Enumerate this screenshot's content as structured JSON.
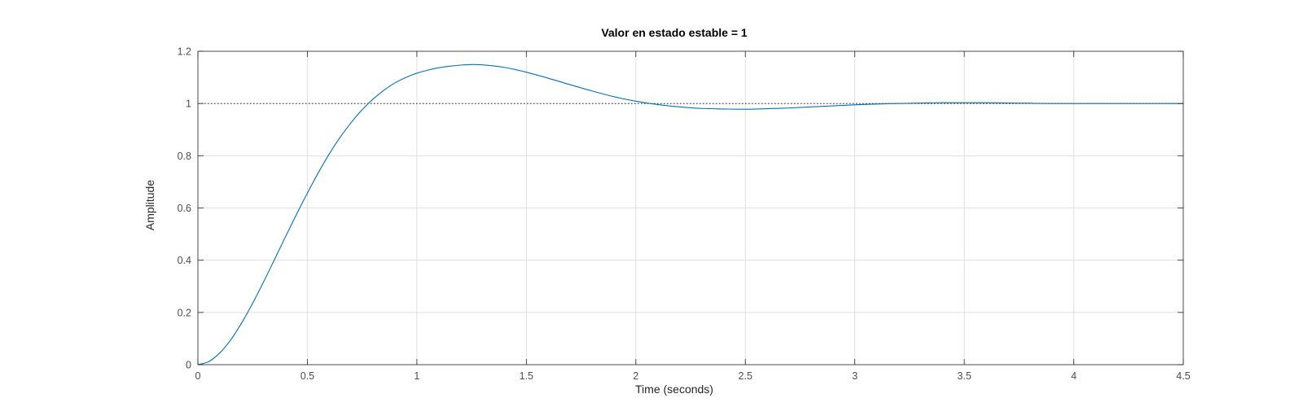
{
  "chart_data": {
    "type": "line",
    "title": "Valor en estado estable = 1",
    "xlabel": "Time (seconds)",
    "ylabel": "Amplitude",
    "xlim": [
      0,
      4.5
    ],
    "ylim": [
      0,
      1.2
    ],
    "xticks": [
      0,
      0.5,
      1,
      1.5,
      2,
      2.5,
      3,
      3.5,
      4,
      4.5
    ],
    "xtick_labels": [
      "0",
      "0.5",
      "1",
      "1.5",
      "2",
      "2.5",
      "3",
      "3.5",
      "4",
      "4.5"
    ],
    "yticks": [
      0,
      0.2,
      0.4,
      0.6,
      0.8,
      1,
      1.2
    ],
    "ytick_labels": [
      "0",
      "0.2",
      "0.4",
      "0.6",
      "0.8",
      "1",
      "1.2"
    ],
    "grid": true,
    "reference_line": {
      "y": 1,
      "style": "dotted",
      "color": "#000000"
    },
    "series": [
      {
        "color": "#0072BD",
        "x": [
          0,
          0.05,
          0.1,
          0.15,
          0.2,
          0.25,
          0.3,
          0.35,
          0.4,
          0.45,
          0.5,
          0.55,
          0.6,
          0.65,
          0.7,
          0.75,
          0.8,
          0.85,
          0.9,
          0.95,
          1.0,
          1.05,
          1.1,
          1.15,
          1.2,
          1.25,
          1.3,
          1.35,
          1.4,
          1.45,
          1.5,
          1.6,
          1.7,
          1.8,
          1.9,
          2.0,
          2.1,
          2.2,
          2.3,
          2.4,
          2.5,
          2.6,
          2.7,
          2.8,
          2.9,
          3.0,
          3.1,
          3.2,
          3.3,
          3.4,
          3.5,
          3.6,
          3.7,
          3.8,
          3.9,
          4.0,
          4.1,
          4.2,
          4.3,
          4.4,
          4.5
        ],
        "y": [
          0,
          0.012,
          0.045,
          0.095,
          0.16,
          0.235,
          0.317,
          0.403,
          0.49,
          0.575,
          0.657,
          0.735,
          0.807,
          0.871,
          0.927,
          0.976,
          1.017,
          1.051,
          1.079,
          1.1,
          1.116,
          1.128,
          1.137,
          1.143,
          1.147,
          1.149,
          1.148,
          1.144,
          1.138,
          1.13,
          1.12,
          1.097,
          1.072,
          1.048,
          1.026,
          1.009,
          0.996,
          0.987,
          0.981,
          0.979,
          0.978,
          0.98,
          0.983,
          0.987,
          0.991,
          0.995,
          0.998,
          1.0,
          1.002,
          1.003,
          1.003,
          1.003,
          1.002,
          1.001,
          1.0,
          1.0,
          1.0,
          1.0,
          1.0,
          1.0,
          1.0
        ]
      }
    ]
  }
}
